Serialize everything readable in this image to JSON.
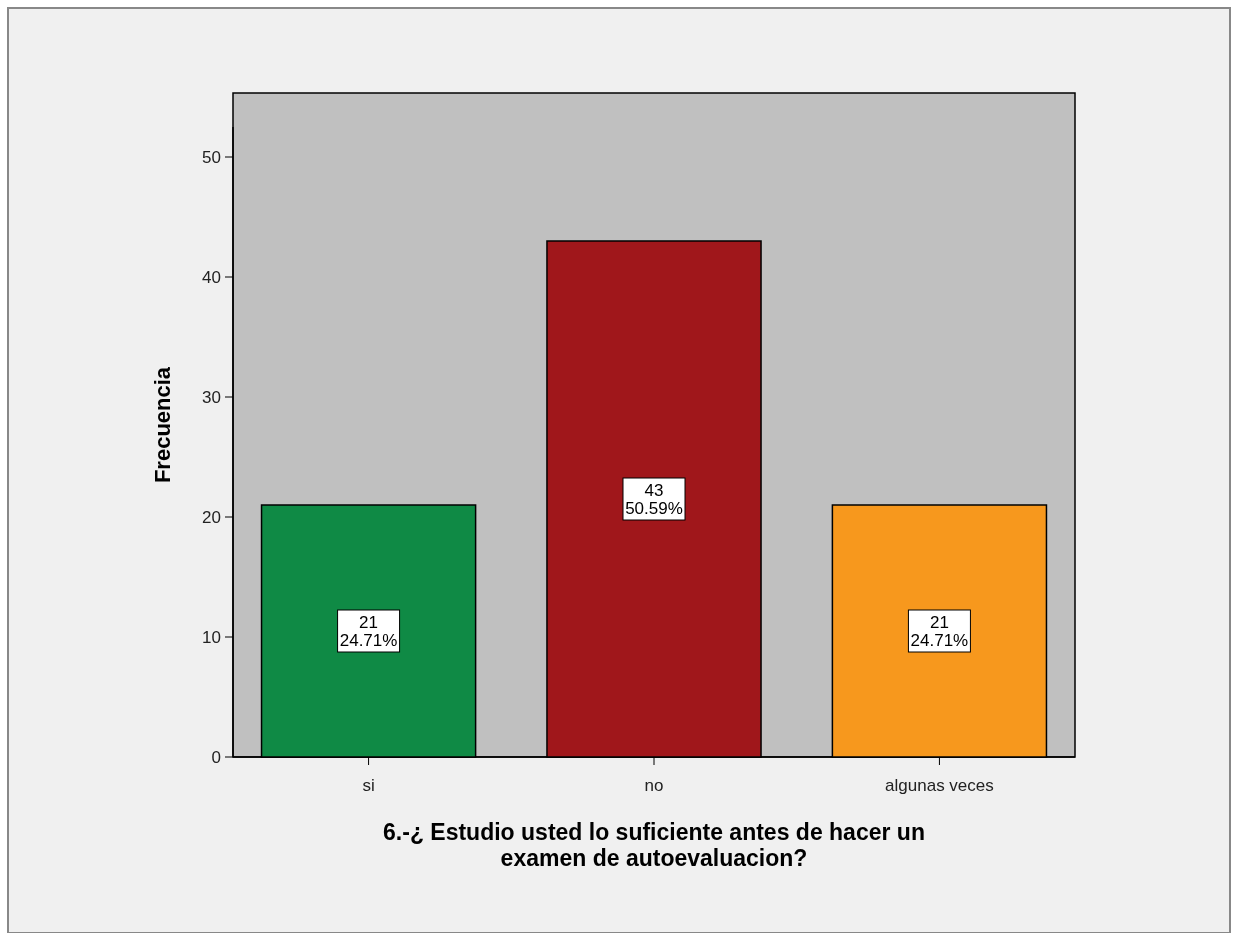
{
  "chart_data": {
    "type": "bar",
    "xlabel": "6.-¿ Estudio usted lo suficiente antes de hacer un examen de autoevaluacion?",
    "ylabel": "Frecuencia",
    "categories": [
      "si",
      "no",
      "algunas veces"
    ],
    "values": [
      21,
      43,
      21
    ],
    "colors": [
      "#0f8a45",
      "#a0171b",
      "#f7981d"
    ],
    "value_labels": [
      "21\n24.71%",
      "43\n50.59%",
      "21\n24.71%"
    ],
    "ylim": [
      0,
      52.5
    ],
    "yticks": [
      0,
      10,
      20,
      30,
      40,
      50
    ]
  }
}
